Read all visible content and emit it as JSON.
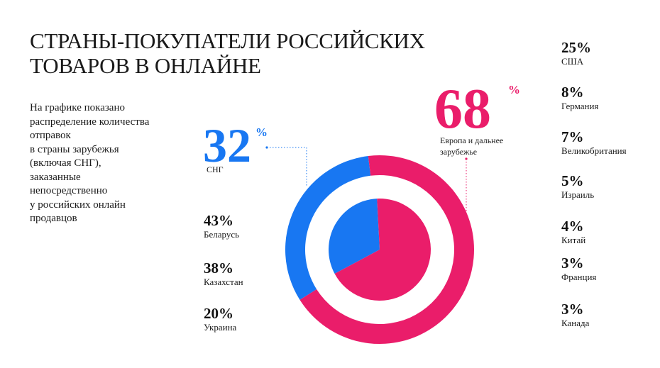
{
  "title": {
    "line1": "СТРАНЫ-ПОКУПАТЕЛИ РОССИЙСКИХ",
    "line2": "ТОВАРОВ В ОНЛАЙНЕ"
  },
  "description": [
    "На графике показано",
    "распределение количества",
    "отправок",
    "в страны зарубежья",
    "(включая СНГ),",
    "заказанные",
    "непосредственно",
    "у российских онлайн",
    "продавцов"
  ],
  "colors": {
    "cis": "#1877f2",
    "europe": "#ea1d6a"
  },
  "chart_data": {
    "type": "pie",
    "subtype": "donut",
    "title": "СТРАНЫ-ПОКУПАТЕЛИ РОССИЙСКИХ ТОВАРОВ В ОНЛАЙНЕ",
    "categories": [
      "СНГ",
      "Европа и дальнее зарубежье"
    ],
    "values": [
      32,
      68
    ],
    "unit": "%",
    "groups": [
      {
        "key": "cis",
        "value": "32",
        "unit": "%",
        "label": "СНГ",
        "items": [
          {
            "value": "43%",
            "name": "Беларусь"
          },
          {
            "value": "38%",
            "name": "Казахстан"
          },
          {
            "value": "20%",
            "name": "Украина"
          }
        ]
      },
      {
        "key": "europe",
        "value": "68",
        "unit": "%",
        "label": "Европа и дальнее зарубежье",
        "items": [
          {
            "value": "25%",
            "name": "США"
          },
          {
            "value": "8%",
            "name": "Германия"
          },
          {
            "value": "7%",
            "name": "Великобритания"
          },
          {
            "value": "5%",
            "name": "Израиль"
          },
          {
            "value": "4%",
            "name": "Китай"
          },
          {
            "value": "3%",
            "name": "Франция"
          },
          {
            "value": "3%",
            "name": "Канада"
          }
        ]
      }
    ]
  }
}
